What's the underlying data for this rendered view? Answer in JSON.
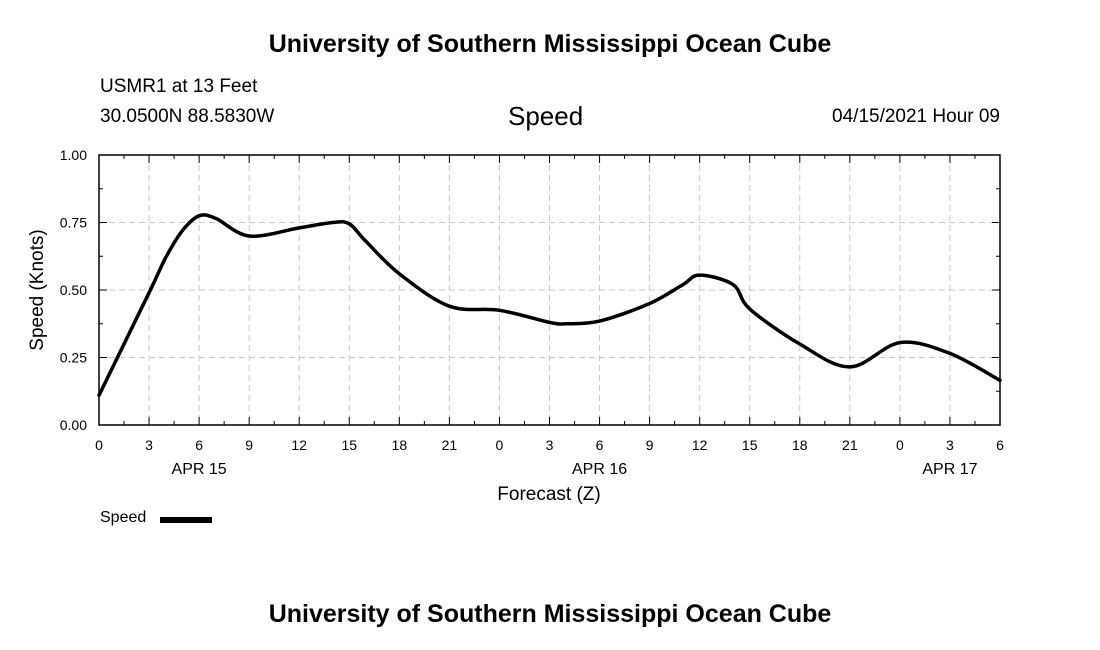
{
  "header": {
    "title_top": "University of Southern Mississippi Ocean Cube",
    "station": "USMR1 at 13 Feet",
    "coords": "30.0500N  88.5830W",
    "variable": "Speed",
    "datetime": "04/15/2021 Hour 09"
  },
  "footer": {
    "title_bottom": "University of Southern Mississippi Ocean Cube"
  },
  "legend": {
    "label": "Speed"
  },
  "colors": {
    "line": "#000000",
    "grid": "#c8c8c8"
  },
  "chart_data": {
    "type": "line",
    "xlabel": "Forecast (Z)",
    "ylabel": "Speed (Knots)",
    "ylim": [
      0,
      1
    ],
    "yticks": [
      "0.00",
      "0.25",
      "0.50",
      "0.75",
      "1.00"
    ],
    "xticks": [
      "0",
      "3",
      "6",
      "9",
      "12",
      "15",
      "18",
      "21",
      "0",
      "3",
      "6",
      "9",
      "12",
      "15",
      "18",
      "21",
      "0",
      "3",
      "6"
    ],
    "date_labels": [
      {
        "label": "APR 15",
        "hour_index": 6
      },
      {
        "label": "APR 16",
        "hour_index": 30
      },
      {
        "label": "APR 17",
        "hour_index": 51
      }
    ],
    "grid": true,
    "legend_position": "bottom-left",
    "series": [
      {
        "name": "Speed",
        "x": [
          0,
          3,
          4,
          5,
          6,
          7,
          9,
          12,
          14,
          15,
          16,
          18,
          21,
          24,
          27,
          28,
          30,
          33,
          35,
          36,
          38,
          39,
          42,
          45,
          48,
          51,
          54
        ],
        "values": [
          0.11,
          0.49,
          0.62,
          0.72,
          0.775,
          0.765,
          0.7,
          0.73,
          0.75,
          0.745,
          0.68,
          0.56,
          0.44,
          0.425,
          0.38,
          0.375,
          0.385,
          0.45,
          0.52,
          0.555,
          0.52,
          0.43,
          0.3,
          0.215,
          0.305,
          0.265,
          0.165
        ]
      }
    ]
  }
}
